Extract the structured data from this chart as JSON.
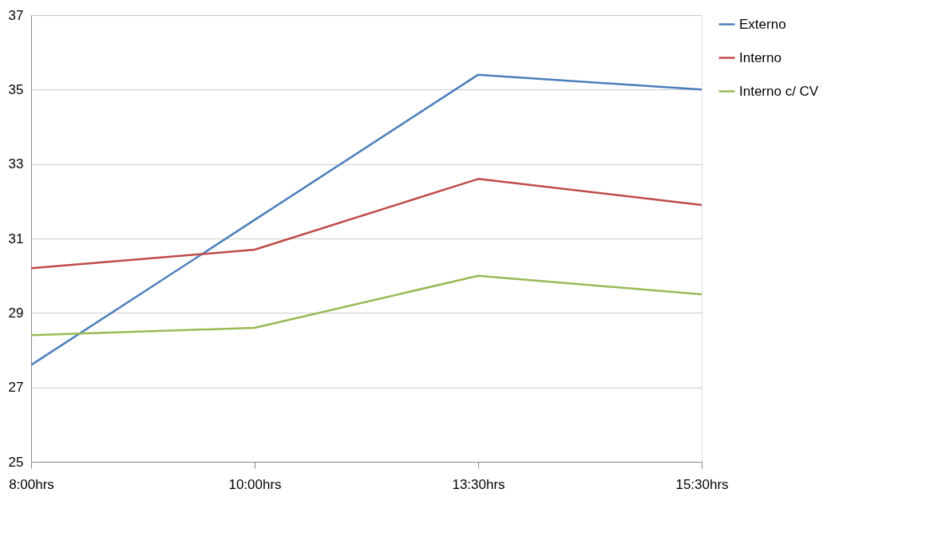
{
  "chart_data": {
    "type": "line",
    "categories": [
      "8:00hrs",
      "10:00hrs",
      "13:30hrs",
      "15:30hrs"
    ],
    "series": [
      {
        "name": "Externo",
        "color": "#4a7ebb",
        "values": [
          27.6,
          31.5,
          35.4,
          35.0
        ]
      },
      {
        "name": "Interno",
        "color": "#be4b48",
        "values": [
          30.2,
          30.7,
          32.6,
          31.9
        ]
      },
      {
        "name": "Interno c/ CV",
        "color": "#98b954",
        "values": [
          28.4,
          28.6,
          30.0,
          29.5
        ]
      }
    ],
    "ylim": [
      25,
      37
    ],
    "yticks": [
      25,
      27,
      29,
      31,
      33,
      35,
      37
    ],
    "grid": "y",
    "legend": "right",
    "marker": "none",
    "line_style": "solid"
  }
}
